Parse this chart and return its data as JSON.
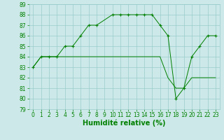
{
  "line1_x": [
    0,
    1,
    2,
    3,
    4,
    5,
    6,
    7,
    8,
    10,
    11,
    12,
    13,
    14,
    15,
    16,
    17,
    18,
    19,
    20,
    21,
    22,
    23
  ],
  "line1_y": [
    83,
    84,
    84,
    84,
    85,
    85,
    86,
    87,
    87,
    88,
    88,
    88,
    88,
    88,
    88,
    87,
    86,
    80,
    81,
    84,
    85,
    86,
    86
  ],
  "line2_x": [
    0,
    1,
    2,
    3,
    4,
    5,
    6,
    7,
    8,
    9,
    10,
    11,
    12,
    13,
    14,
    15,
    16,
    17,
    18,
    19,
    20,
    21,
    22,
    23
  ],
  "line2_y": [
    83,
    84,
    84,
    84,
    84,
    84,
    84,
    84,
    84,
    84,
    84,
    84,
    84,
    84,
    84,
    84,
    84,
    82,
    81,
    81,
    82,
    82,
    82,
    82
  ],
  "line_color": "#008000",
  "marker_color": "#008000",
  "bg_color": "#cce8e8",
  "grid_color": "#99cccc",
  "xlabel": "Humidité relative (%)",
  "xlim": [
    -0.5,
    23.5
  ],
  "ylim": [
    79,
    89
  ],
  "yticks": [
    79,
    80,
    81,
    82,
    83,
    84,
    85,
    86,
    87,
    88,
    89
  ],
  "xticks": [
    0,
    1,
    2,
    3,
    4,
    5,
    6,
    7,
    8,
    9,
    10,
    11,
    12,
    13,
    14,
    15,
    16,
    17,
    18,
    19,
    20,
    21,
    22,
    23
  ],
  "tick_fontsize": 5.5,
  "xlabel_fontsize": 7
}
